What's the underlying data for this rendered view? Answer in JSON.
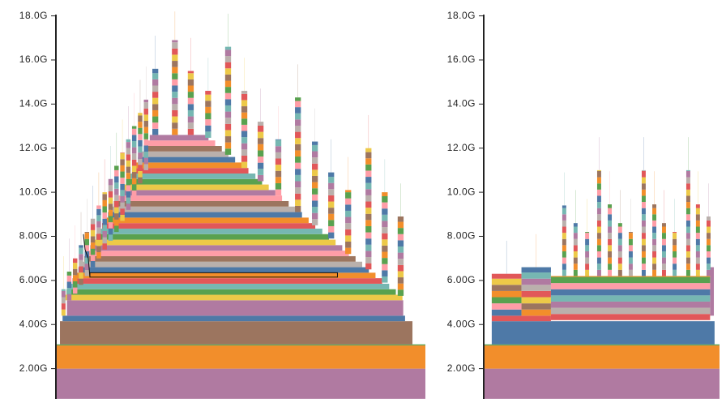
{
  "palette": [
    "#4e79a7",
    "#f28e2b",
    "#e15759",
    "#76b7b2",
    "#59a14f",
    "#edc948",
    "#b07aa1",
    "#ff9da7",
    "#9c755f",
    "#bab0ac"
  ],
  "chart_data": [
    {
      "type": "area",
      "title": "",
      "xlabel": "",
      "ylabel": "",
      "ylim": [
        0.63,
        18.1
      ],
      "xlim": [
        0,
        100
      ],
      "y_ticks": [
        {
          "value": 18,
          "label": "18.0G"
        },
        {
          "value": 16,
          "label": "16.0G"
        },
        {
          "value": 14,
          "label": "14.0G"
        },
        {
          "value": 12,
          "label": "12.0G"
        },
        {
          "value": 10,
          "label": "10.0G"
        },
        {
          "value": 8,
          "label": "8.00G"
        },
        {
          "value": 6,
          "label": "6.00G"
        },
        {
          "value": 4,
          "label": "4.00G"
        },
        {
          "value": 2,
          "label": "2.00G"
        }
      ],
      "grid": false,
      "blocks": [
        [
          0,
          100,
          0.63,
          2.0,
          6
        ],
        [
          0,
          100,
          2.0,
          3.05,
          1
        ],
        [
          0,
          100,
          3.05,
          3.1,
          4
        ],
        [
          1.1,
          96.5,
          3.1,
          4.15,
          8
        ],
        [
          1.8,
          94.5,
          4.15,
          4.4,
          0
        ],
        [
          3,
          94,
          4.4,
          5.1,
          6
        ],
        [
          2.1,
          93.8,
          5.1,
          5.35,
          5
        ],
        [
          2.9,
          92.0,
          5.35,
          5.6,
          4
        ],
        [
          3.7,
          90.2,
          5.6,
          5.85,
          3
        ],
        [
          4.5,
          88.3,
          5.85,
          6.1,
          2
        ],
        [
          5.3,
          86.5,
          6.1,
          6.35,
          1
        ],
        [
          6.1,
          84.7,
          6.35,
          6.6,
          0
        ],
        [
          6.9,
          82.9,
          6.6,
          6.85,
          9
        ],
        [
          7.7,
          81.1,
          6.85,
          7.1,
          8
        ],
        [
          8.5,
          79.3,
          7.1,
          7.35,
          7
        ],
        [
          9.3,
          77.5,
          7.35,
          7.6,
          6
        ],
        [
          10.1,
          75.7,
          7.6,
          7.85,
          5
        ],
        [
          10.9,
          73.9,
          7.85,
          8.1,
          4
        ],
        [
          11.7,
          72.1,
          8.1,
          8.35,
          3
        ],
        [
          12.5,
          70.2,
          8.35,
          8.6,
          2
        ],
        [
          13.3,
          68.4,
          8.6,
          8.85,
          1
        ],
        [
          14.1,
          66.6,
          8.85,
          9.1,
          0
        ],
        [
          14.9,
          64.8,
          9.1,
          9.35,
          9
        ],
        [
          15.7,
          63.0,
          9.35,
          9.6,
          8
        ],
        [
          16.6,
          61.2,
          9.6,
          9.85,
          7
        ],
        [
          17.4,
          59.4,
          9.85,
          10.1,
          6
        ],
        [
          18.2,
          57.6,
          10.1,
          10.35,
          5
        ],
        [
          19.0,
          55.8,
          10.35,
          10.6,
          4
        ],
        [
          19.8,
          54.0,
          10.6,
          10.85,
          3
        ],
        [
          20.6,
          52.1,
          10.85,
          11.1,
          2
        ],
        [
          21.4,
          50.3,
          11.1,
          11.35,
          1
        ],
        [
          22.2,
          48.5,
          11.35,
          11.6,
          0
        ],
        [
          23.0,
          46.7,
          11.6,
          11.85,
          9
        ],
        [
          23.8,
          44.9,
          11.85,
          12.1,
          8
        ],
        [
          24.6,
          43.1,
          12.1,
          12.35,
          7
        ],
        [
          25.4,
          41.3,
          12.35,
          12.6,
          6
        ]
      ],
      "highlighted_block": [
        9.2,
        76.2,
        6.15,
        6.35
      ],
      "columns": [
        [
          26.1,
          27.7,
          12.6,
          15.6
        ],
        [
          31.4,
          33.0,
          12.6,
          16.9
        ],
        [
          35.7,
          37.3,
          12.6,
          15.5
        ],
        [
          40.4,
          42.0,
          12.47,
          14.6
        ],
        [
          45.8,
          47.4,
          11.7,
          16.6
        ],
        [
          50.2,
          51.8,
          11.1,
          14.6
        ],
        [
          54.6,
          56.2,
          10.5,
          13.2
        ],
        [
          59.4,
          61.0,
          9.85,
          12.4
        ],
        [
          64.7,
          66.3,
          9.1,
          14.3
        ],
        [
          69.3,
          70.9,
          8.5,
          12.3
        ],
        [
          73.7,
          75.3,
          7.9,
          10.9
        ],
        [
          78.3,
          79.9,
          7.2,
          10.1
        ],
        [
          83.8,
          85.4,
          6.5,
          12.0
        ],
        [
          88.2,
          89.8,
          5.9,
          10.0
        ],
        [
          92.5,
          94.1,
          5.3,
          8.9
        ],
        [
          1.5,
          2.6,
          4.4,
          5.6
        ],
        [
          3.0,
          4.2,
          5.1,
          6.4
        ],
        [
          4.6,
          5.8,
          5.4,
          7.0
        ],
        [
          6.2,
          7.4,
          5.8,
          7.6
        ],
        [
          7.8,
          9.0,
          6.2,
          8.2
        ],
        [
          9.4,
          10.6,
          6.6,
          8.8
        ],
        [
          11.0,
          12.2,
          7.0,
          9.4
        ],
        [
          12.6,
          13.8,
          7.4,
          10.0
        ],
        [
          14.2,
          15.4,
          7.8,
          10.6
        ],
        [
          15.8,
          17.0,
          8.2,
          11.2
        ],
        [
          17.4,
          18.6,
          8.7,
          11.8
        ],
        [
          19.0,
          20.2,
          9.2,
          12.4
        ],
        [
          20.6,
          21.8,
          9.8,
          13.0
        ],
        [
          22.2,
          23.4,
          10.4,
          13.6
        ],
        [
          23.8,
          25.0,
          11.0,
          14.2
        ]
      ]
    },
    {
      "type": "area",
      "title": "",
      "xlabel": "",
      "ylabel": "",
      "ylim": [
        0.63,
        18.1
      ],
      "xlim": [
        0,
        100
      ],
      "y_ticks": [
        {
          "value": 18,
          "label": "18.0G"
        },
        {
          "value": 16,
          "label": "16.0G"
        },
        {
          "value": 14,
          "label": "14.0G"
        },
        {
          "value": 12,
          "label": "12.0G"
        },
        {
          "value": 10,
          "label": "10.0G"
        },
        {
          "value": 8,
          "label": "8.00G"
        },
        {
          "value": 6,
          "label": "6.00G"
        },
        {
          "value": 4,
          "label": "4.00G"
        },
        {
          "value": 2,
          "label": "2.00G"
        }
      ],
      "grid": false,
      "blocks": [
        [
          0,
          100,
          0.63,
          2.0,
          6
        ],
        [
          0,
          100,
          2.0,
          3.05,
          1
        ],
        [
          0,
          100,
          3.05,
          3.1,
          4
        ],
        [
          3.4,
          97.9,
          3.1,
          4.15,
          0
        ],
        [
          3.4,
          28.5,
          4.15,
          4.4,
          2
        ],
        [
          96,
          97.6,
          4.4,
          6.6,
          6
        ]
      ],
      "columns": [
        [
          3.4,
          16,
          4.4,
          6.3
        ],
        [
          16,
          28.5,
          4.4,
          6.6
        ],
        [
          28.5,
          96,
          4.2,
          6.2
        ],
        [
          33.3,
          35.0,
          6.2,
          9.4
        ],
        [
          38.1,
          39.8,
          6.2,
          8.6
        ],
        [
          43.0,
          44.7,
          6.2,
          8.2
        ],
        [
          48.1,
          49.8,
          6.2,
          11.0
        ],
        [
          52.6,
          54.3,
          6.2,
          9.45
        ],
        [
          57.0,
          58.7,
          6.2,
          8.6
        ],
        [
          61.5,
          63.2,
          6.2,
          8.2
        ],
        [
          67.0,
          68.7,
          6.2,
          11.0
        ],
        [
          71.5,
          73.2,
          6.2,
          9.45
        ],
        [
          75.6,
          77.3,
          6.2,
          8.6
        ],
        [
          80.1,
          81.8,
          6.2,
          8.2
        ],
        [
          85.9,
          87.6,
          6.2,
          11.0
        ],
        [
          90.0,
          91.7,
          6.2,
          9.45
        ],
        [
          94.5,
          96.2,
          6.2,
          8.9
        ]
      ]
    }
  ]
}
